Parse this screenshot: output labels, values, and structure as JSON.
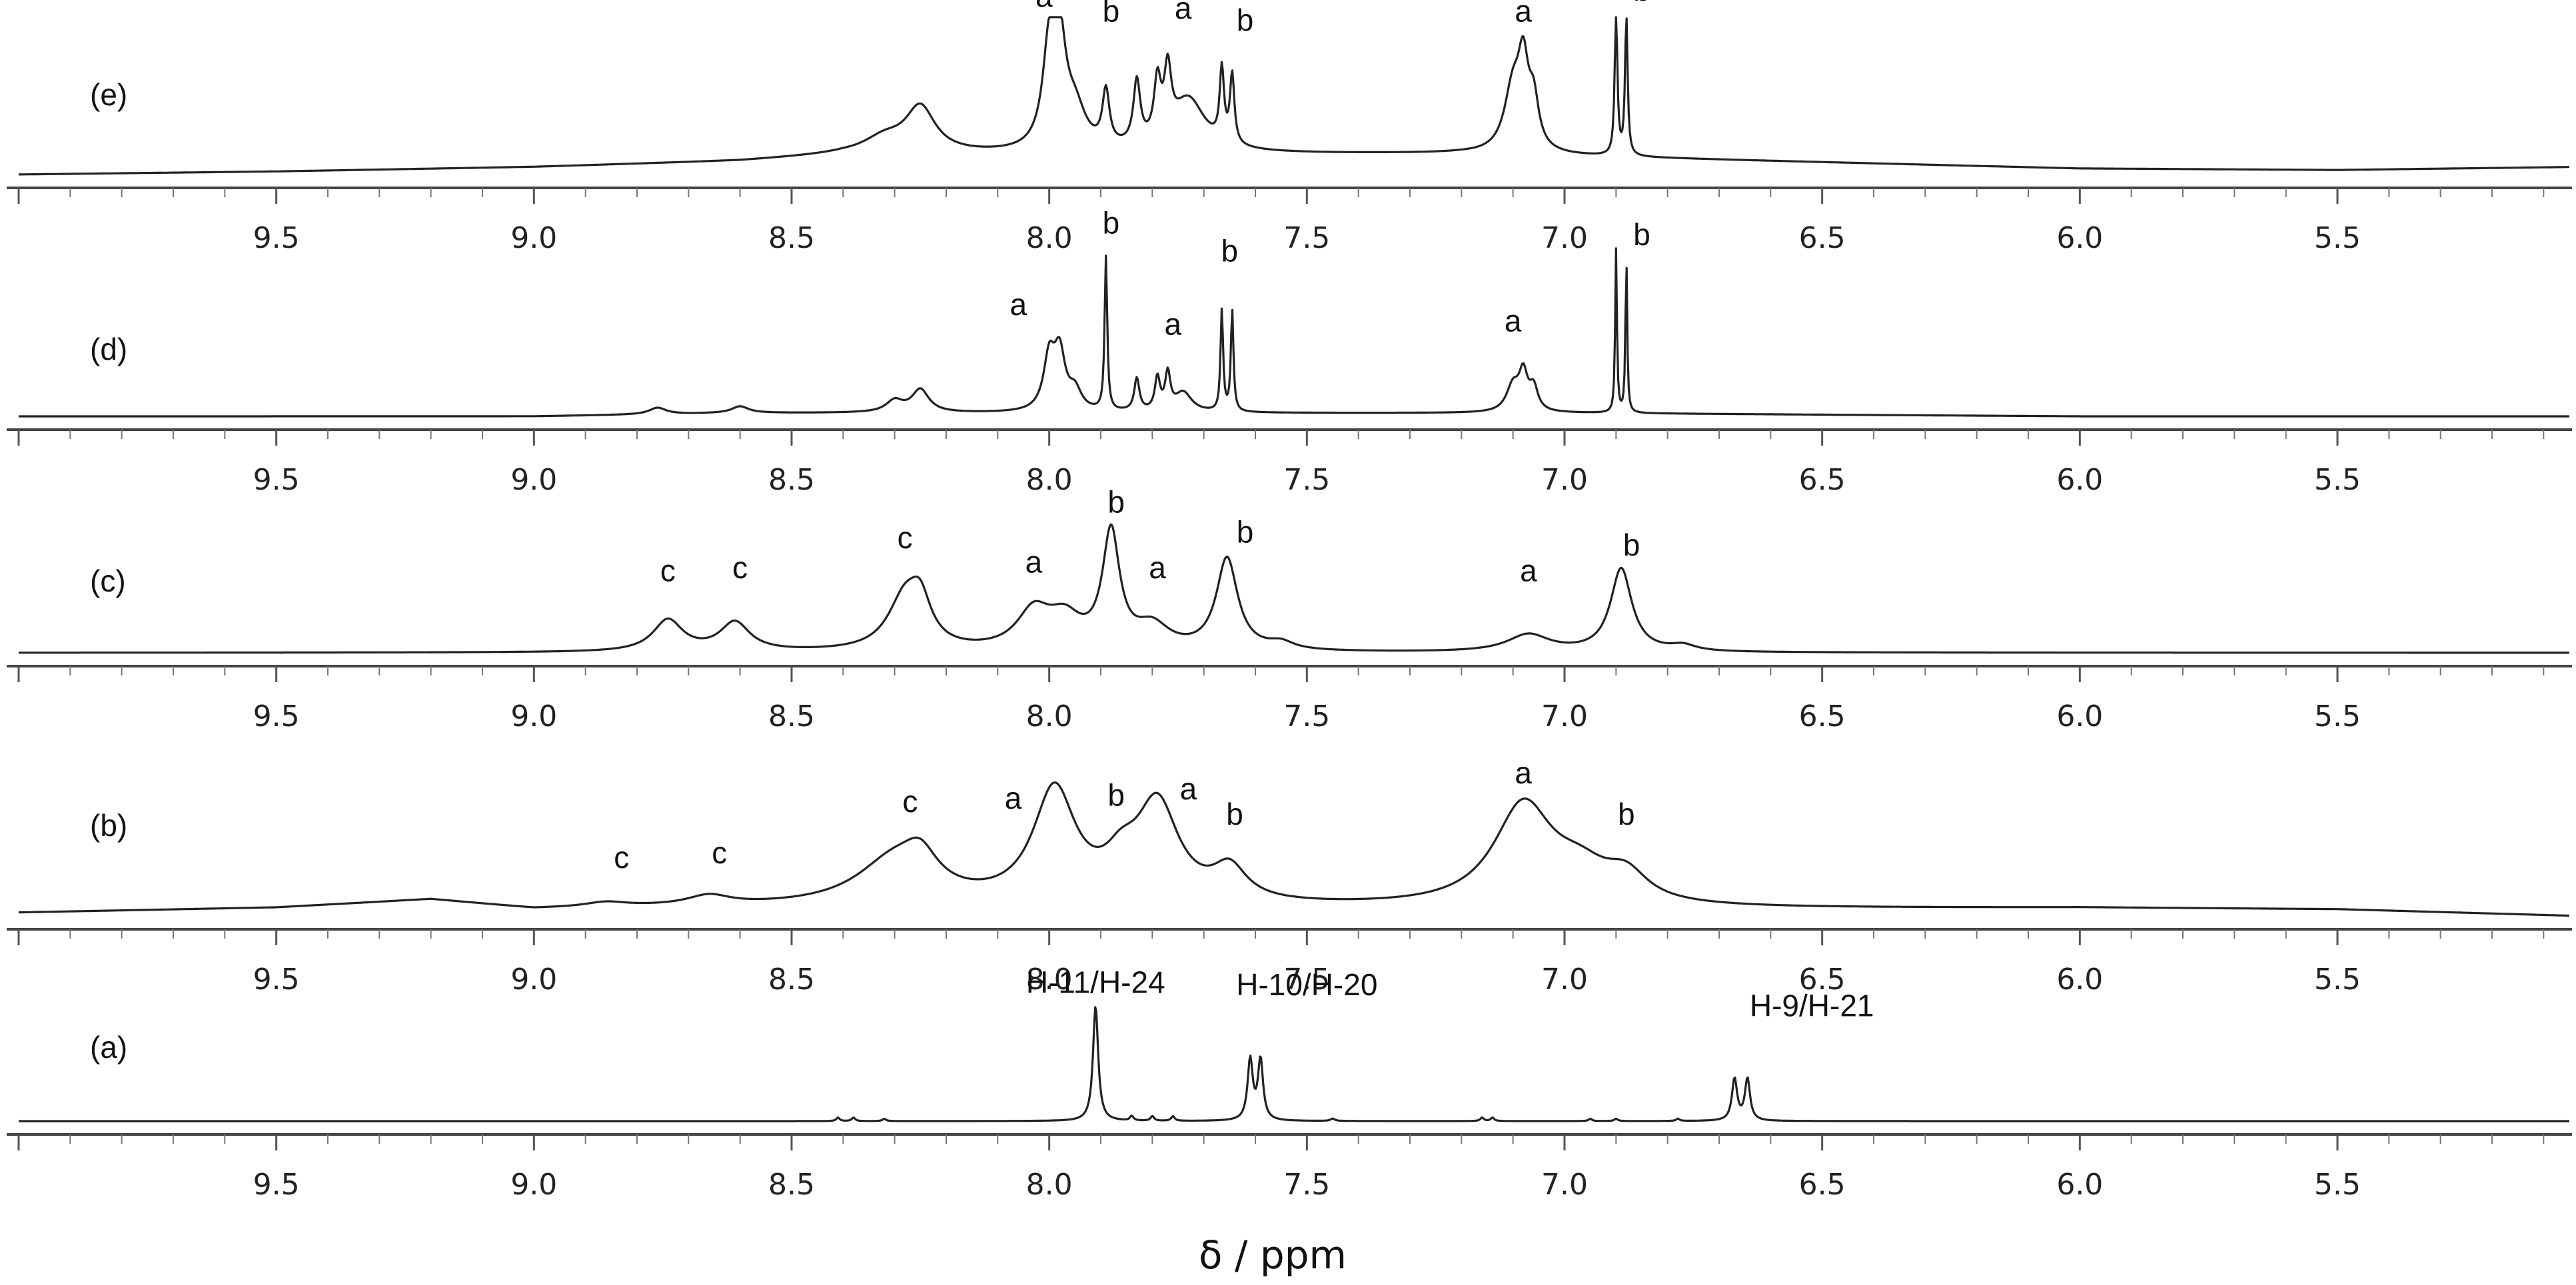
{
  "chart_data": {
    "type": "line",
    "xlabel": "δ / ppm",
    "x_reversed": true,
    "xlim": [
      10.0,
      5.05
    ],
    "xticks": [
      9.5,
      9.0,
      8.5,
      8.0,
      7.5,
      7.0,
      6.5,
      6.0,
      5.5
    ],
    "xtick_labels": [
      "9.5",
      "9.0",
      "8.5",
      "8.0",
      "7.5",
      "7.0",
      "6.5",
      "6.0",
      "5.5"
    ],
    "grid": false,
    "legend": "none",
    "panels": [
      {
        "label": "(e)",
        "baseline": [
          [
            10.0,
            0.0
          ],
          [
            9.5,
            0.02
          ],
          [
            9.0,
            0.05
          ],
          [
            8.6,
            0.09
          ],
          [
            8.4,
            0.13
          ],
          [
            7.2,
            0.14
          ],
          [
            6.6,
            0.09
          ],
          [
            6.0,
            0.04
          ],
          [
            5.5,
            0.03
          ],
          [
            5.05,
            0.05
          ]
        ],
        "peaks": [
          {
            "x": 8.32,
            "h": 0.1,
            "w": 0.05
          },
          {
            "x": 8.25,
            "h": 0.3,
            "w": 0.035
          },
          {
            "x": 8.0,
            "h": 0.62,
            "w": 0.015
          },
          {
            "x": 7.98,
            "h": 0.66,
            "w": 0.015
          },
          {
            "x": 7.95,
            "h": 0.25,
            "w": 0.025
          },
          {
            "x": 7.89,
            "h": 0.36,
            "w": 0.008
          },
          {
            "x": 7.83,
            "h": 0.42,
            "w": 0.008
          },
          {
            "x": 7.79,
            "h": 0.38,
            "w": 0.008
          },
          {
            "x": 7.77,
            "h": 0.42,
            "w": 0.008
          },
          {
            "x": 7.73,
            "h": 0.35,
            "w": 0.04
          },
          {
            "x": 7.665,
            "h": 0.48,
            "w": 0.005
          },
          {
            "x": 7.645,
            "h": 0.46,
            "w": 0.005
          },
          {
            "x": 7.1,
            "h": 0.42,
            "w": 0.02
          },
          {
            "x": 7.08,
            "h": 0.5,
            "w": 0.012
          },
          {
            "x": 7.06,
            "h": 0.3,
            "w": 0.012
          },
          {
            "x": 6.9,
            "h": 0.99,
            "w": 0.003
          },
          {
            "x": 6.88,
            "h": 0.93,
            "w": 0.003
          }
        ],
        "labels": [
          {
            "text": "a",
            "x": 8.01,
            "y": 1.12
          },
          {
            "text": "b",
            "x": 7.88,
            "y": 1.02
          },
          {
            "text": "a",
            "x": 7.74,
            "y": 1.04
          },
          {
            "text": "b",
            "x": 7.62,
            "y": 0.96
          },
          {
            "text": "a",
            "x": 7.08,
            "y": 1.02
          },
          {
            "text": "b",
            "x": 6.85,
            "y": 1.16
          }
        ]
      },
      {
        "label": "(d)",
        "baseline": [
          [
            10.0,
            0.0
          ],
          [
            9.0,
            0.0
          ],
          [
            8.6,
            0.02
          ],
          [
            7.0,
            0.02
          ],
          [
            6.0,
            0.0
          ],
          [
            5.05,
            0.0
          ]
        ],
        "peaks": [
          {
            "x": 8.76,
            "h": 0.04,
            "w": 0.02
          },
          {
            "x": 8.6,
            "h": 0.04,
            "w": 0.02
          },
          {
            "x": 8.3,
            "h": 0.07,
            "w": 0.02
          },
          {
            "x": 8.25,
            "h": 0.14,
            "w": 0.02
          },
          {
            "x": 8.0,
            "h": 0.32,
            "w": 0.013
          },
          {
            "x": 7.98,
            "h": 0.34,
            "w": 0.013
          },
          {
            "x": 7.95,
            "h": 0.12,
            "w": 0.015
          },
          {
            "x": 7.89,
            "h": 0.94,
            "w": 0.003
          },
          {
            "x": 7.83,
            "h": 0.2,
            "w": 0.006
          },
          {
            "x": 7.79,
            "h": 0.2,
            "w": 0.006
          },
          {
            "x": 7.77,
            "h": 0.22,
            "w": 0.006
          },
          {
            "x": 7.74,
            "h": 0.12,
            "w": 0.02
          },
          {
            "x": 7.665,
            "h": 0.62,
            "w": 0.003
          },
          {
            "x": 7.645,
            "h": 0.62,
            "w": 0.003
          },
          {
            "x": 7.1,
            "h": 0.16,
            "w": 0.015
          },
          {
            "x": 7.08,
            "h": 0.22,
            "w": 0.01
          },
          {
            "x": 7.06,
            "h": 0.14,
            "w": 0.01
          },
          {
            "x": 6.9,
            "h": 1.0,
            "w": 0.002
          },
          {
            "x": 6.88,
            "h": 0.95,
            "w": 0.002
          }
        ],
        "labels": [
          {
            "text": "a",
            "x": 8.06,
            "y": 0.62
          },
          {
            "text": "b",
            "x": 7.88,
            "y": 1.12
          },
          {
            "text": "a",
            "x": 7.76,
            "y": 0.5
          },
          {
            "text": "b",
            "x": 7.65,
            "y": 0.95
          },
          {
            "text": "a",
            "x": 7.1,
            "y": 0.52
          },
          {
            "text": "b",
            "x": 6.85,
            "y": 1.05
          }
        ]
      },
      {
        "label": "(c)",
        "baseline": [
          [
            10.0,
            0.0
          ],
          [
            5.05,
            0.0
          ]
        ],
        "peaks": [
          {
            "x": 8.74,
            "h": 0.22,
            "w": 0.035
          },
          {
            "x": 8.61,
            "h": 0.2,
            "w": 0.035
          },
          {
            "x": 8.28,
            "h": 0.36,
            "w": 0.04
          },
          {
            "x": 8.25,
            "h": 0.26,
            "w": 0.025
          },
          {
            "x": 8.03,
            "h": 0.26,
            "w": 0.04
          },
          {
            "x": 7.97,
            "h": 0.2,
            "w": 0.04
          },
          {
            "x": 7.88,
            "h": 0.8,
            "w": 0.02
          },
          {
            "x": 7.8,
            "h": 0.16,
            "w": 0.04
          },
          {
            "x": 7.655,
            "h": 0.64,
            "w": 0.025
          },
          {
            "x": 7.55,
            "h": 0.05,
            "w": 0.03
          },
          {
            "x": 7.07,
            "h": 0.12,
            "w": 0.05
          },
          {
            "x": 6.89,
            "h": 0.58,
            "w": 0.025
          },
          {
            "x": 6.77,
            "h": 0.04,
            "w": 0.03
          }
        ],
        "labels": [
          {
            "text": "c",
            "x": 8.74,
            "y": 0.5
          },
          {
            "text": "c",
            "x": 8.6,
            "y": 0.52
          },
          {
            "text": "c",
            "x": 8.28,
            "y": 0.73
          },
          {
            "text": "a",
            "x": 8.03,
            "y": 0.56
          },
          {
            "text": "b",
            "x": 7.87,
            "y": 0.98
          },
          {
            "text": "a",
            "x": 7.79,
            "y": 0.52
          },
          {
            "text": "b",
            "x": 7.62,
            "y": 0.77
          },
          {
            "text": "a",
            "x": 7.07,
            "y": 0.5
          },
          {
            "text": "b",
            "x": 6.87,
            "y": 0.68
          }
        ]
      },
      {
        "label": "(b)",
        "baseline": [
          [
            10.0,
            0.02
          ],
          [
            9.5,
            0.05
          ],
          [
            9.2,
            0.1
          ],
          [
            9.0,
            0.04
          ],
          [
            8.7,
            0.05
          ],
          [
            7.6,
            0.05
          ],
          [
            6.8,
            0.04
          ],
          [
            6.0,
            0.05
          ],
          [
            5.5,
            0.04
          ],
          [
            5.05,
            0.0
          ]
        ],
        "peaks": [
          {
            "x": 8.86,
            "h": 0.03,
            "w": 0.05
          },
          {
            "x": 8.66,
            "h": 0.06,
            "w": 0.05
          },
          {
            "x": 8.3,
            "h": 0.28,
            "w": 0.09
          },
          {
            "x": 8.25,
            "h": 0.18,
            "w": 0.04
          },
          {
            "x": 7.99,
            "h": 0.7,
            "w": 0.05
          },
          {
            "x": 7.86,
            "h": 0.18,
            "w": 0.04
          },
          {
            "x": 7.79,
            "h": 0.6,
            "w": 0.05
          },
          {
            "x": 7.65,
            "h": 0.2,
            "w": 0.04
          },
          {
            "x": 7.08,
            "h": 0.62,
            "w": 0.07
          },
          {
            "x": 6.97,
            "h": 0.18,
            "w": 0.07
          },
          {
            "x": 6.88,
            "h": 0.16,
            "w": 0.05
          }
        ],
        "labels": [
          {
            "text": "c",
            "x": 8.83,
            "y": 0.3
          },
          {
            "text": "c",
            "x": 8.64,
            "y": 0.33
          },
          {
            "text": "c",
            "x": 8.27,
            "y": 0.65
          },
          {
            "text": "a",
            "x": 8.07,
            "y": 0.67
          },
          {
            "text": "b",
            "x": 7.87,
            "y": 0.69
          },
          {
            "text": "a",
            "x": 7.73,
            "y": 0.73
          },
          {
            "text": "b",
            "x": 7.64,
            "y": 0.57
          },
          {
            "text": "a",
            "x": 7.08,
            "y": 0.83
          },
          {
            "text": "b",
            "x": 6.88,
            "y": 0.57
          }
        ]
      },
      {
        "label": "(a)",
        "baseline": [
          [
            10.0,
            0.0
          ],
          [
            5.05,
            0.0
          ]
        ],
        "peaks": [
          {
            "x": 8.41,
            "h": 0.03,
            "w": 0.004
          },
          {
            "x": 8.38,
            "h": 0.03,
            "w": 0.004
          },
          {
            "x": 8.32,
            "h": 0.02,
            "w": 0.004
          },
          {
            "x": 7.91,
            "h": 0.99,
            "w": 0.006
          },
          {
            "x": 7.84,
            "h": 0.04,
            "w": 0.004
          },
          {
            "x": 7.8,
            "h": 0.04,
            "w": 0.004
          },
          {
            "x": 7.76,
            "h": 0.04,
            "w": 0.004
          },
          {
            "x": 7.61,
            "h": 0.52,
            "w": 0.006
          },
          {
            "x": 7.59,
            "h": 0.52,
            "w": 0.006
          },
          {
            "x": 7.45,
            "h": 0.02,
            "w": 0.005
          },
          {
            "x": 7.16,
            "h": 0.03,
            "w": 0.004
          },
          {
            "x": 7.14,
            "h": 0.03,
            "w": 0.004
          },
          {
            "x": 6.95,
            "h": 0.02,
            "w": 0.004
          },
          {
            "x": 6.9,
            "h": 0.02,
            "w": 0.004
          },
          {
            "x": 6.78,
            "h": 0.02,
            "w": 0.004
          },
          {
            "x": 6.67,
            "h": 0.36,
            "w": 0.006
          },
          {
            "x": 6.645,
            "h": 0.36,
            "w": 0.006
          }
        ],
        "labels": [
          {
            "text": "H-11/H-24",
            "x": 7.91,
            "y": 1.1
          },
          {
            "text": "H-10/H-20",
            "x": 7.5,
            "y": 1.08
          },
          {
            "text": "H-9/H-21",
            "x": 6.52,
            "y": 0.9
          }
        ]
      }
    ]
  }
}
